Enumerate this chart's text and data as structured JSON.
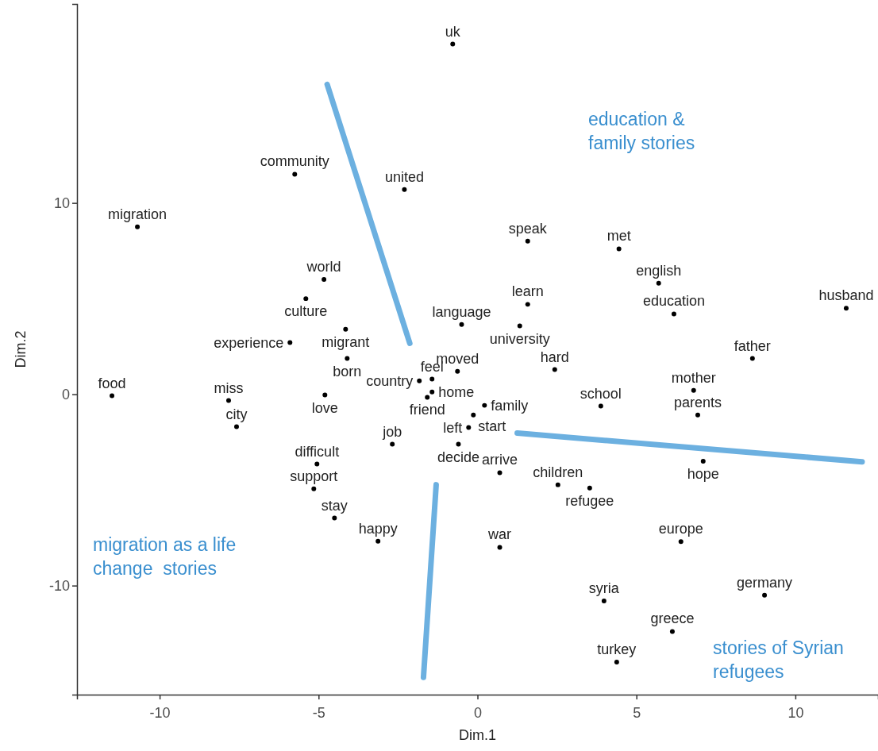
{
  "chart_data": {
    "type": "scatter",
    "xlabel": "Dim.1",
    "ylabel": "Dim.2",
    "xlim": [
      -12.6,
      12.6
    ],
    "ylim": [
      -15.7,
      20.4
    ],
    "xticks": [
      -10,
      -5,
      0,
      5,
      10
    ],
    "yticks": [
      -10,
      0,
      10
    ],
    "grid": false,
    "series": [
      {
        "marker": "circle",
        "color": "#000000",
        "x": [
          -0.78,
          -5.75,
          -2.3,
          -10.7,
          1.58,
          4.45,
          -4.83,
          5.7,
          -5.4,
          1.58,
          11.6,
          6.18,
          -0.5,
          1.33,
          -4.15,
          -5.9,
          -4.1,
          8.65,
          2.43,
          -0.63,
          -1.43,
          -1.83,
          -1.43,
          -1.58,
          6.8,
          -11.5,
          -4.8,
          -7.83,
          3.88,
          0.22,
          -0.13,
          6.93,
          -7.58,
          -0.28,
          -2.68,
          -0.6,
          7.1,
          -5.05,
          0.7,
          2.53,
          3.53,
          -5.15,
          -4.5,
          6.4,
          -3.13,
          0.7,
          3.98,
          9.03,
          6.13,
          4.38
        ],
        "values": [
          18.3,
          11.5,
          10.7,
          8.75,
          8.0,
          7.6,
          6.0,
          5.8,
          5.0,
          4.7,
          4.5,
          4.2,
          3.65,
          3.57,
          3.4,
          2.7,
          1.87,
          1.87,
          1.29,
          1.2,
          0.12,
          0.7,
          0.79,
          -0.16,
          0.2,
          -0.08,
          -0.04,
          -0.33,
          -0.62,
          -0.58,
          -1.08,
          -1.08,
          -1.7,
          -1.74,
          -2.61,
          -2.61,
          -3.5,
          -3.65,
          -4.1,
          -4.73,
          -4.9,
          -4.94,
          -6.47,
          -7.7,
          -7.68,
          -8.0,
          -10.8,
          -10.5,
          -12.4,
          -14.0
        ],
        "value_labels": [
          "uk",
          "community",
          "united",
          "migration",
          "speak",
          "met",
          "world",
          "english",
          "culture",
          "learn",
          "husband",
          "education",
          "language",
          "university",
          "migrant",
          "experience",
          "born",
          "father",
          "hard",
          "moved",
          "home",
          "country",
          "feel",
          "friend",
          "mother",
          "food",
          "love",
          "miss",
          "school",
          "family",
          "start",
          "parents",
          "city",
          "left",
          "job",
          "decide",
          "hope",
          "difficult",
          "arrive",
          "children",
          "refugee",
          "support",
          "stay",
          "europe",
          "happy",
          "war",
          "syria",
          "germany",
          "greece",
          "turkey"
        ]
      },
      {
        "type": "line",
        "color": "#6cb0e0",
        "x": [
          -4.73,
          -2.13
        ],
        "values": [
          16.2,
          2.66
        ]
      },
      {
        "type": "line",
        "color": "#6cb0e0",
        "x": [
          1.25,
          12.1
        ],
        "values": [
          -2.03,
          -3.53
        ]
      },
      {
        "type": "line",
        "color": "#6cb0e0",
        "x": [
          -1.3,
          -1.7
        ],
        "values": [
          -4.73,
          -14.8
        ]
      }
    ],
    "annotations": [
      "education &\nfamily stories",
      "migration as a life\nchange  stories",
      "stories of Syrian\nrefugees"
    ]
  }
}
